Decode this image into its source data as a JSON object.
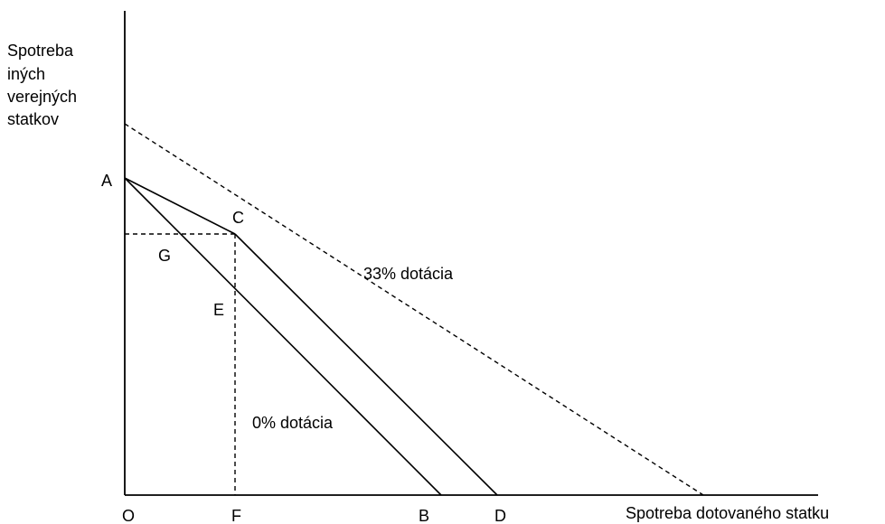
{
  "y_axis_label": [
    "Spotreba",
    "iných",
    "verejných",
    "statkov"
  ],
  "x_axis_label": "Spotreba dotovaného statku",
  "points": {
    "A": "A",
    "C": "C",
    "G": "G",
    "E": "E",
    "O": "O",
    "F": "F",
    "B": "B",
    "D": "D"
  },
  "annotations": {
    "subsidy_33": "33% dotácia",
    "subsidy_0": "0% dotácia"
  }
}
